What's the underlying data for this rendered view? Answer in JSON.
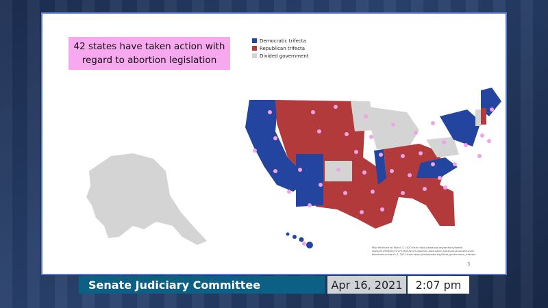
{
  "slide": {
    "headline_line1": "42 states have taken action with",
    "headline_line2": "regard to abortion legislation",
    "legend": [
      {
        "label": "Democratic trifecta",
        "color": "#2345a0"
      },
      {
        "label": "Republican trifecta",
        "color": "#b23a3a"
      },
      {
        "label": "Divided government",
        "color": "#d4d4d4"
      }
    ],
    "source_line1": "Map retrieved on March 3, 2020 from https://www.npr.org/sections/health-shots/2019/06/05/729753505/which-abortion-laws-which-states-have-passed-them",
    "source_line2": "Retrieved on March 3, 2021 from https://ballotpedia.org/State_government_trifectas",
    "page_number": "3",
    "marker_color": "#f2a3e8"
  },
  "chyron": {
    "committee": "Senate Judiciary Committee",
    "date": "Apr 16, 2021",
    "time": "2:07 pm"
  }
}
